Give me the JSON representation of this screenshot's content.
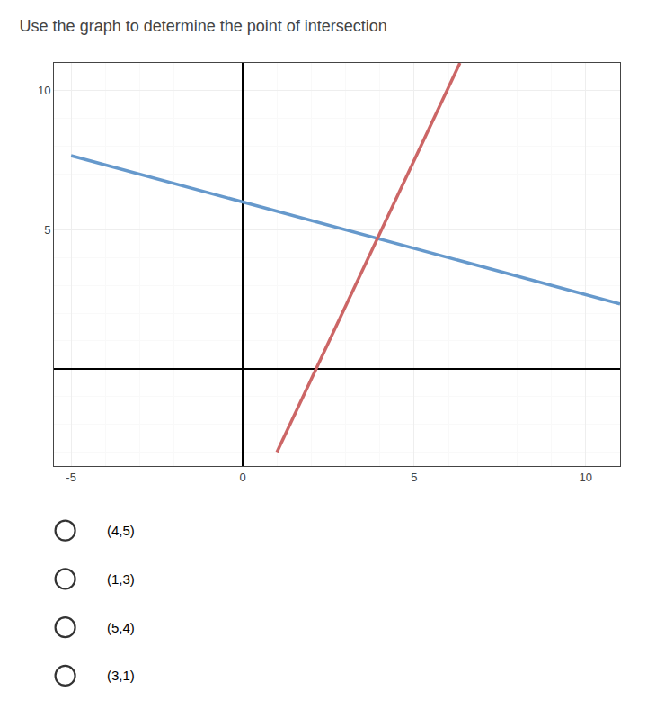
{
  "chart_data": {
    "type": "line",
    "title": "Use the graph to determine the point of intersection",
    "series": [
      {
        "color": "#6699cc",
        "x": [
          -5,
          11
        ],
        "values": [
          7.667,
          2.333
        ]
      },
      {
        "color": "#cc6666",
        "x": [
          1.0,
          6.333
        ],
        "values": [
          -3,
          11
        ]
      }
    ],
    "xlim": [
      -5.5,
      11.0
    ],
    "ylim": [
      -3.5,
      11.0
    ],
    "xticks": [
      -5,
      0,
      5,
      10
    ],
    "yticks": [
      5,
      10
    ],
    "grid": true,
    "annotations": [
      "(4,5)",
      "(1,3)",
      "(5,4)",
      "(3,1)"
    ]
  }
}
